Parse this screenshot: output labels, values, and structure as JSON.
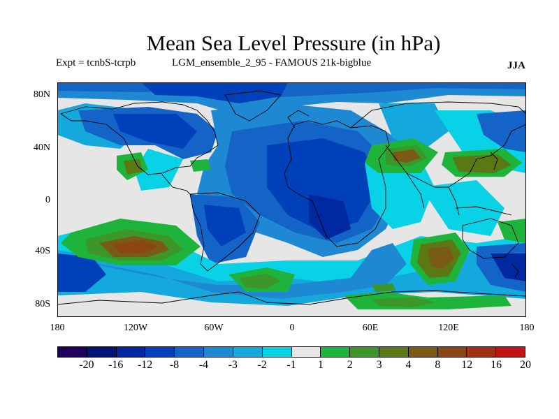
{
  "title": "Mean Sea Level Pressure (in hPa)",
  "subtitle_left": "Expt = tcnbS-tcrpb",
  "subtitle_mid": "LGM_ensemble_2_95 - FAMOUS 21k-bigblue",
  "season": "JJA",
  "lat_labels": [
    "80N",
    "40N",
    "0",
    "40S",
    "80S"
  ],
  "lon_labels": [
    "180",
    "120W",
    "60W",
    "0",
    "60E",
    "120E",
    "180"
  ],
  "legend": {
    "colors": [
      "#20005f",
      "#00147a",
      "#0028a0",
      "#0040b8",
      "#1464c8",
      "#1e88d2",
      "#14a8dc",
      "#0ad2e6",
      "#e6e6e6",
      "#1eb43c",
      "#3c9628",
      "#5a7814",
      "#7a5a14",
      "#8c4614",
      "#a03014",
      "#c01414"
    ],
    "labels": [
      "-20",
      "-16",
      "-12",
      "-8",
      "-4",
      "-3",
      "-2",
      "-1",
      "1",
      "2",
      "3",
      "4",
      "8",
      "12",
      "16",
      "20"
    ]
  }
}
